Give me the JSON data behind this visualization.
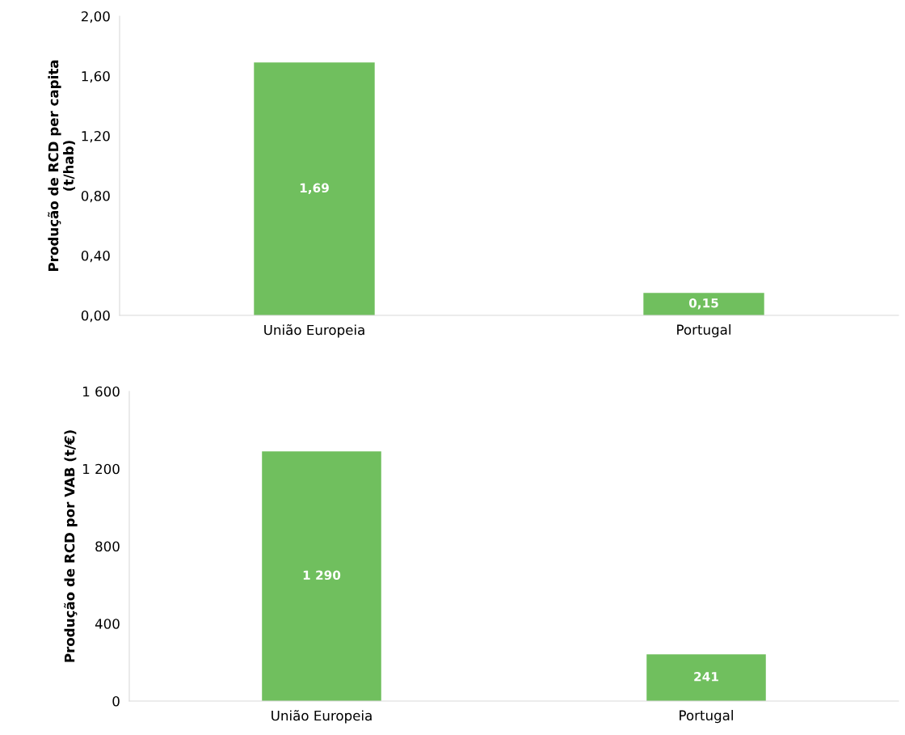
{
  "chart_data": [
    {
      "type": "bar",
      "categories": [
        "União Europeia",
        "Portugal"
      ],
      "values": [
        1.69,
        0.15
      ],
      "color": "#70bf5e",
      "value_labels": [
        "1,69",
        "0,15"
      ],
      "ylabel": "Produção de RCD per capita\n(t/hab)",
      "ylim": [
        0,
        2
      ],
      "yticks": [
        {
          "value": 0,
          "label": "0,00"
        },
        {
          "value": 0.4,
          "label": "0,40"
        },
        {
          "value": 0.8,
          "label": "0,80"
        },
        {
          "value": 1.2,
          "label": "1,20"
        },
        {
          "value": 1.6,
          "label": "1,60"
        },
        {
          "value": 2,
          "label": "2,00"
        }
      ],
      "grid": false,
      "legend": false
    },
    {
      "type": "bar",
      "categories": [
        "União Europeia",
        "Portugal"
      ],
      "values": [
        1290,
        241
      ],
      "color": "#70bf5e",
      "value_labels": [
        "1 290",
        "241"
      ],
      "ylabel": "Produção de RCD por VAB (t/€)",
      "ylim": [
        0,
        1600
      ],
      "yticks": [
        0,
        {
          "value": 400,
          "label": "400"
        },
        {
          "value": 800,
          "label": "800"
        },
        {
          "value": 1200,
          "label": "1 200"
        },
        {
          "value": 1600,
          "label": "1 600"
        }
      ],
      "grid": false,
      "legend": false
    }
  ]
}
